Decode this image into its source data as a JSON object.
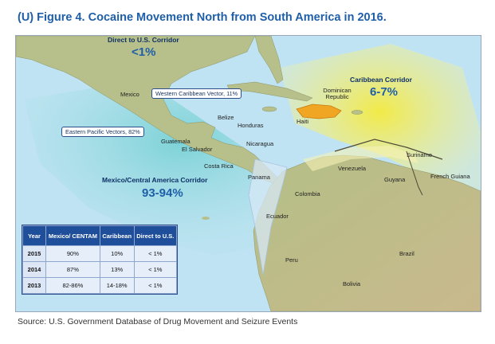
{
  "figure": {
    "title": "(U) Figure 4.  Cocaine Movement North from South America in 2016.",
    "source": "Source:  U.S. Government Database of Drug Movement and Seizure Events"
  },
  "corridors": {
    "direct_us": {
      "title": "Direct to U.S. Corridor",
      "pct": "<1%"
    },
    "caribbean": {
      "title": "Caribbean Corridor",
      "pct": "6-7%"
    },
    "mexico_ca": {
      "title": "Mexico/Central America Corridor",
      "pct": "93-94%"
    }
  },
  "vectors": {
    "western_caribbean": "Western Caribbean Vector, 11%",
    "eastern_pacific": "Eastern Pacific Vectors, 82%"
  },
  "countries": {
    "mexico": "Mexico",
    "belize": "Belize",
    "honduras": "Honduras",
    "guatemala": "Guatemala",
    "el_salvador": "El Salvador",
    "nicaragua": "Nicaragua",
    "costa_rica": "Costa Rica",
    "panama": "Panama",
    "dominican_republic": "Dominican Republic",
    "haiti": "Haiti",
    "venezuela": "Venezuela",
    "suriname": "Suriname",
    "guyana": "Guyana",
    "french_guiana": "French Guiana",
    "colombia": "Colombia",
    "ecuador": "Ecuador",
    "peru": "Peru",
    "brazil": "Brazil",
    "bolivia": "Bolivia"
  },
  "table": {
    "headers": [
      "Year",
      "Mexico/ CENTAM",
      "Caribbean",
      "Direct to U.S."
    ],
    "rows": [
      [
        "2015",
        "90%",
        "10%",
        "< 1%"
      ],
      [
        "2014",
        "87%",
        "13%",
        "< 1%"
      ],
      [
        "2013",
        "82-86%",
        "14-18%",
        "< 1%"
      ]
    ]
  },
  "colors": {
    "ocean": "#bfe3f3",
    "land": "#b9c18c",
    "land_south": "#c7b48a",
    "corridor_teal": "#7fd3d6",
    "corridor_yellow": "#f4ea5a",
    "title_blue": "#1f5fa8"
  }
}
